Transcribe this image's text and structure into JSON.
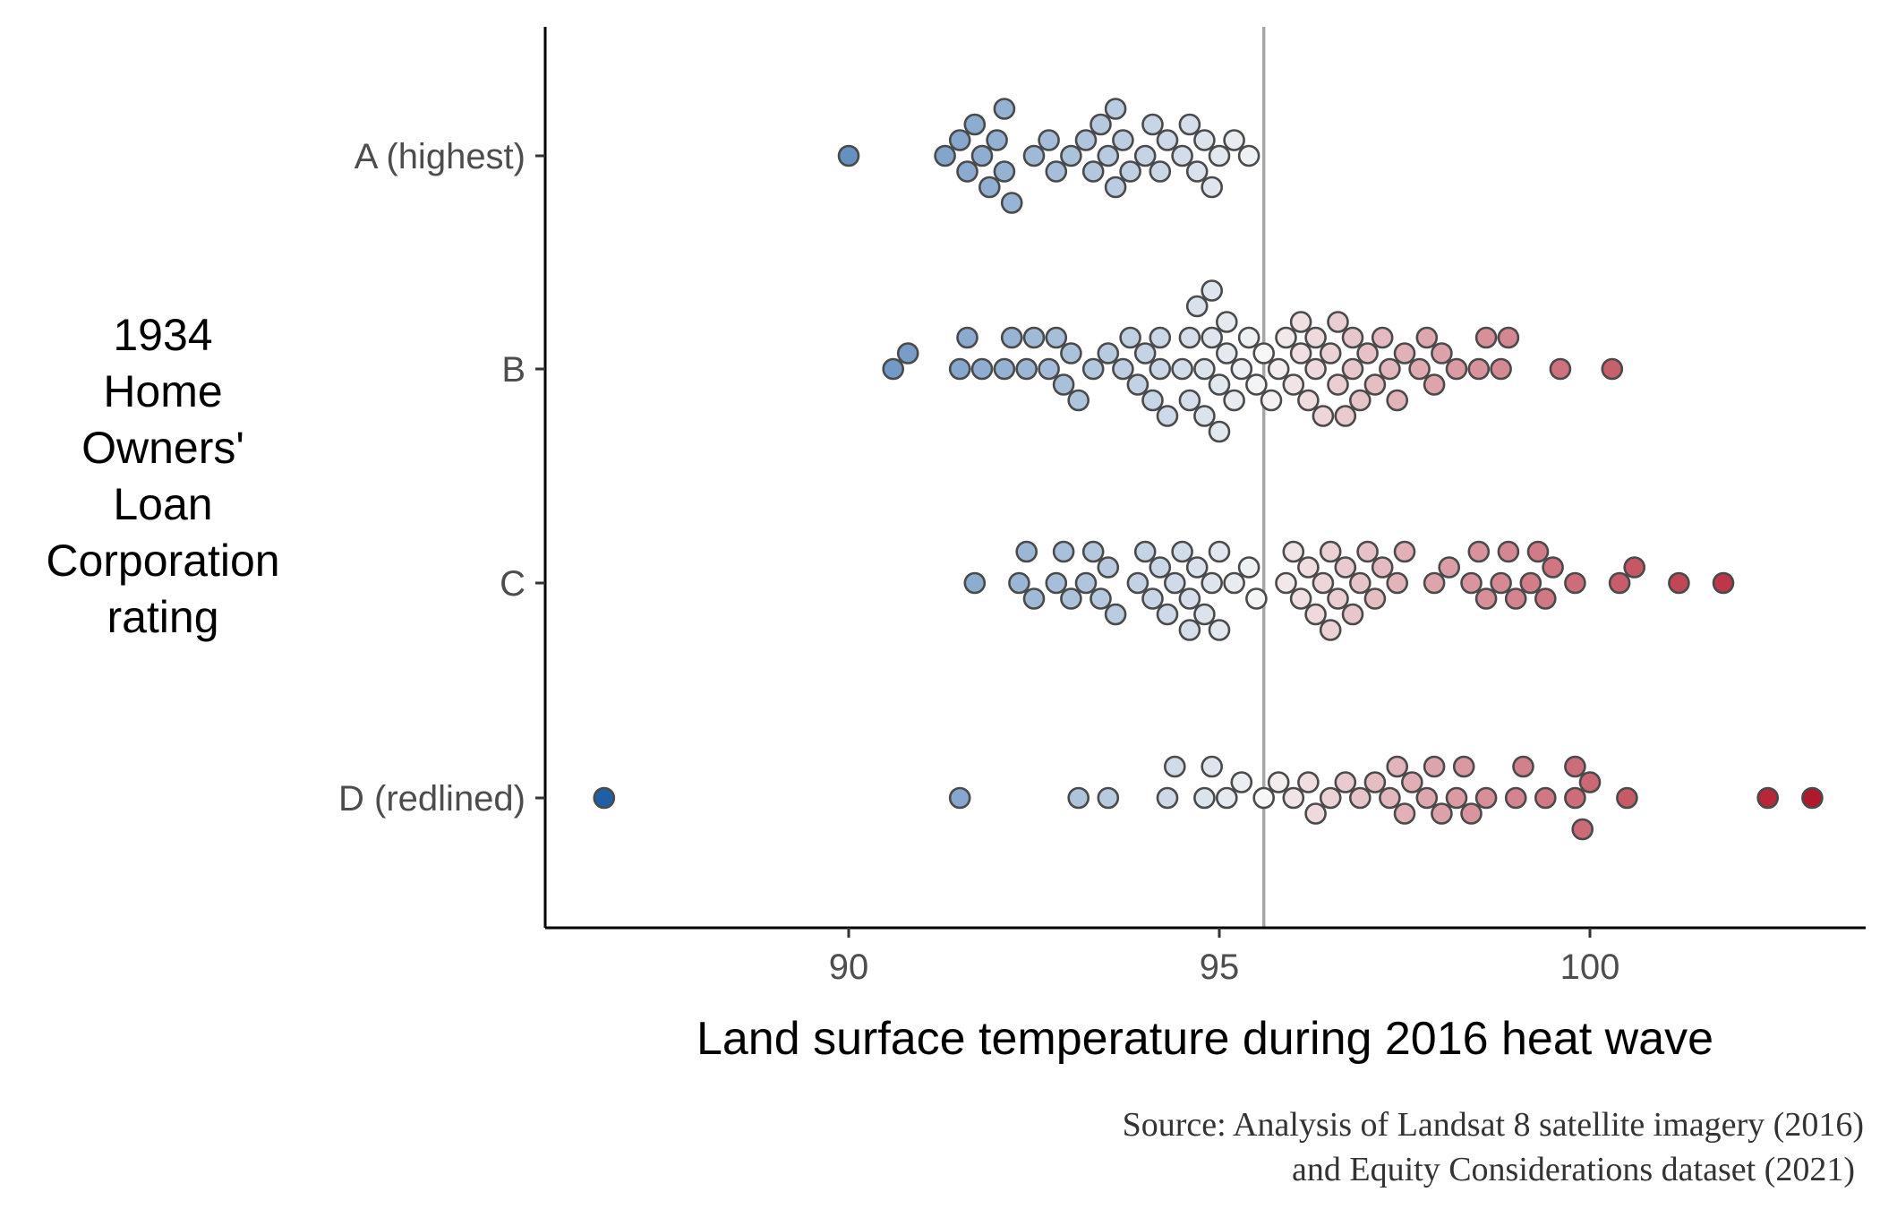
{
  "chart_data": {
    "type": "scatter",
    "subtype": "beeswarm",
    "title": "",
    "xlabel": "Land surface temperature during 2016 heat wave",
    "ylabel_lines": [
      "1934",
      "Home",
      "Owners'",
      "Loan",
      "Corporation",
      "rating"
    ],
    "categories": [
      "A (highest)",
      "B",
      "C",
      "D (redlined)"
    ],
    "xlim": [
      86.6,
      103.8
    ],
    "xticks": [
      90,
      95,
      100
    ],
    "xtick_labels": [
      "90",
      "95",
      "100"
    ],
    "reference_line": 95.6,
    "color_scale": {
      "low": "#1f5fa8",
      "mid": "#f7f7f7",
      "high": "#b2182b",
      "domain": [
        86.7,
        95.6,
        103.0
      ]
    },
    "grid": false,
    "legend": "none",
    "caption_lines": [
      "Source: Analysis of Landsat 8 satellite imagery (2016)",
      "and Equity Considerations dataset (2021)"
    ],
    "series": [
      {
        "category": "A (highest)",
        "values": [
          90.0,
          91.3,
          91.5,
          91.6,
          91.7,
          91.8,
          91.9,
          92.0,
          92.1,
          92.1,
          92.2,
          92.5,
          92.7,
          92.8,
          93.0,
          93.2,
          93.3,
          93.4,
          93.5,
          93.6,
          93.6,
          93.7,
          93.8,
          94.0,
          94.1,
          94.2,
          94.3,
          94.5,
          94.6,
          94.7,
          94.8,
          94.9,
          95.0,
          95.2,
          95.4
        ]
      },
      {
        "category": "B",
        "values": [
          90.6,
          90.8,
          91.5,
          91.6,
          91.8,
          92.1,
          92.2,
          92.4,
          92.5,
          92.7,
          92.8,
          92.9,
          93.0,
          93.1,
          93.3,
          93.5,
          93.7,
          93.8,
          93.9,
          94.0,
          94.1,
          94.2,
          94.2,
          94.3,
          94.5,
          94.6,
          94.6,
          94.7,
          94.8,
          94.8,
          94.9,
          94.9,
          95.0,
          95.0,
          95.1,
          95.1,
          95.2,
          95.3,
          95.4,
          95.5,
          95.6,
          95.7,
          95.8,
          95.9,
          96.0,
          96.1,
          96.1,
          96.2,
          96.3,
          96.3,
          96.4,
          96.5,
          96.6,
          96.6,
          96.7,
          96.8,
          96.8,
          96.9,
          97.0,
          97.1,
          97.2,
          97.3,
          97.4,
          97.5,
          97.7,
          97.8,
          97.9,
          98.0,
          98.2,
          98.5,
          98.6,
          98.8,
          98.9,
          99.6,
          100.3
        ]
      },
      {
        "category": "C",
        "values": [
          91.7,
          92.3,
          92.4,
          92.5,
          92.8,
          92.9,
          93.0,
          93.2,
          93.3,
          93.4,
          93.5,
          93.6,
          93.9,
          94.0,
          94.1,
          94.2,
          94.3,
          94.4,
          94.5,
          94.6,
          94.6,
          94.7,
          94.8,
          94.9,
          95.0,
          95.0,
          95.2,
          95.4,
          95.5,
          95.9,
          96.0,
          96.1,
          96.2,
          96.3,
          96.4,
          96.5,
          96.5,
          96.6,
          96.7,
          96.8,
          96.9,
          97.0,
          97.1,
          97.2,
          97.4,
          97.5,
          97.9,
          98.1,
          98.4,
          98.5,
          98.6,
          98.8,
          98.9,
          99.0,
          99.2,
          99.3,
          99.4,
          99.5,
          99.8,
          100.4,
          100.6,
          101.2,
          101.8
        ]
      },
      {
        "category": "D (redlined)",
        "values": [
          86.7,
          91.5,
          93.1,
          93.5,
          94.3,
          94.4,
          94.8,
          94.9,
          95.1,
          95.3,
          95.6,
          95.8,
          96.0,
          96.2,
          96.3,
          96.5,
          96.7,
          96.9,
          97.1,
          97.3,
          97.4,
          97.5,
          97.6,
          97.8,
          97.9,
          98.0,
          98.2,
          98.3,
          98.4,
          98.6,
          99.0,
          99.1,
          99.4,
          99.8,
          99.8,
          99.9,
          100.0,
          100.5,
          102.4,
          103.0
        ]
      }
    ]
  }
}
